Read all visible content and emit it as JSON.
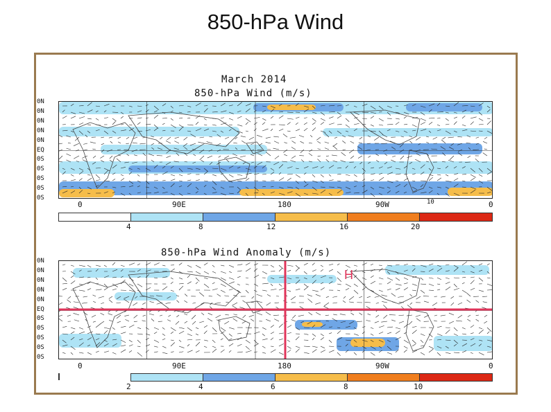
{
  "slide": {
    "title": "850-h​Pa Wind"
  },
  "panel_top": {
    "line1": "March 2014",
    "line2": "850-hPa Wind (m/s)",
    "lat_labels": [
      "0N",
      "0N",
      "0N",
      "0N",
      "0N",
      "EQ",
      "0S",
      "0S",
      "0S",
      "0S",
      "0S"
    ],
    "lon_labels": [
      "0",
      "90E",
      "180",
      "90W",
      "0"
    ],
    "stray_label": "10",
    "colorbar": {
      "ticks": [
        "4",
        "8",
        "12",
        "16",
        "20"
      ],
      "colors": [
        "#ffffff",
        "#aee3f5",
        "#6fa6e6",
        "#f6bd4a",
        "#f07e1e",
        "#dc2815"
      ]
    }
  },
  "panel_bottom": {
    "line1": "850-hPa Wind Anomaly (m/s)",
    "lat_labels": [
      "0N",
      "0N",
      "0N",
      "0N",
      "0N",
      "EQ",
      "0S",
      "0S",
      "0S",
      "0S",
      "0S"
    ],
    "lon_labels": [
      "0",
      "90E",
      "180",
      "90W",
      "0"
    ],
    "annotation": "H",
    "colorbar": {
      "ticks": [
        "2",
        "4",
        "6",
        "8",
        "10"
      ],
      "colors": [
        "#aee3f5",
        "#6fa6e6",
        "#f6bd4a",
        "#f07e1e",
        "#dc2815"
      ]
    }
  },
  "colors": {
    "frame": "#9a7a4f",
    "overlay": "#e0345a",
    "land": "#444444",
    "arrow": "#222222",
    "wind_light": "#aee3f5",
    "wind_medium": "#6fa6e6",
    "wind_orange": "#f6bd4a",
    "wind_dark_orange": "#f07e1e"
  }
}
